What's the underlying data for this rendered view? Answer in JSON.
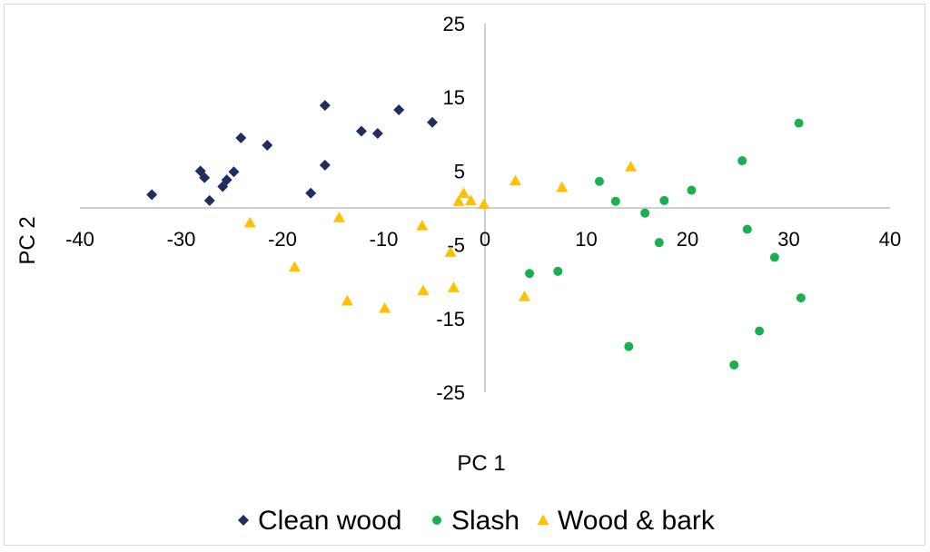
{
  "chart_data": {
    "type": "scatter",
    "xlabel": "PC 1",
    "ylabel": "PC 2",
    "xlim": [
      -40,
      40
    ],
    "ylim": [
      -25,
      25
    ],
    "x_ticks": [
      "-40",
      "-30",
      "-20",
      "-10",
      "0",
      "10",
      "20",
      "30",
      "40"
    ],
    "y_ticks": [
      "25",
      "15",
      "5",
      "-5",
      "-15",
      "-25"
    ],
    "legend_position": "bottom",
    "grid": false,
    "series": [
      {
        "name": "Clean wood",
        "color": "#1f2e5f",
        "marker": "diamond",
        "points": [
          [
            -32.9,
            1.8
          ],
          [
            -28.1,
            5.0
          ],
          [
            -27.7,
            4.1
          ],
          [
            -27.2,
            1.0
          ],
          [
            -25.9,
            2.9
          ],
          [
            -25.5,
            3.8
          ],
          [
            -24.8,
            4.9
          ],
          [
            -24.1,
            9.5
          ],
          [
            -21.5,
            8.5
          ],
          [
            -17.2,
            2.0
          ],
          [
            -15.8,
            5.8
          ],
          [
            -15.8,
            13.9
          ],
          [
            -12.2,
            10.4
          ],
          [
            -10.6,
            10.1
          ],
          [
            -8.5,
            13.3
          ],
          [
            -5.2,
            11.6
          ]
        ]
      },
      {
        "name": "Slash",
        "color": "#19b050",
        "marker": "circle",
        "points": [
          [
            4.4,
            -8.9
          ],
          [
            7.2,
            -8.6
          ],
          [
            11.3,
            3.6
          ],
          [
            12.9,
            0.9
          ],
          [
            15.8,
            -0.7
          ],
          [
            17.2,
            -4.7
          ],
          [
            17.7,
            1.0
          ],
          [
            20.4,
            2.4
          ],
          [
            14.2,
            -18.8
          ],
          [
            25.4,
            6.4
          ],
          [
            25.9,
            -2.9
          ],
          [
            24.6,
            -21.3
          ],
          [
            27.1,
            -16.7
          ],
          [
            28.6,
            -6.7
          ],
          [
            31.0,
            11.5
          ],
          [
            31.2,
            -12.2
          ]
        ]
      },
      {
        "name": "Wood & bark",
        "color": "#ffc000",
        "marker": "triangle",
        "points": [
          [
            -23.2,
            -2.0
          ],
          [
            -18.8,
            -8.0
          ],
          [
            -14.4,
            -1.3
          ],
          [
            -13.6,
            -12.6
          ],
          [
            -9.9,
            -13.6
          ],
          [
            -6.2,
            -2.4
          ],
          [
            -6.1,
            -11.2
          ],
          [
            -3.4,
            -6.0
          ],
          [
            -3.1,
            -10.8
          ],
          [
            -2.6,
            0.9
          ],
          [
            -2.1,
            2.0
          ],
          [
            -1.4,
            1.0
          ],
          [
            -0.1,
            0.5
          ],
          [
            3.0,
            3.7
          ],
          [
            3.9,
            -12.0
          ],
          [
            7.6,
            2.8
          ],
          [
            14.4,
            5.6
          ]
        ]
      }
    ]
  }
}
